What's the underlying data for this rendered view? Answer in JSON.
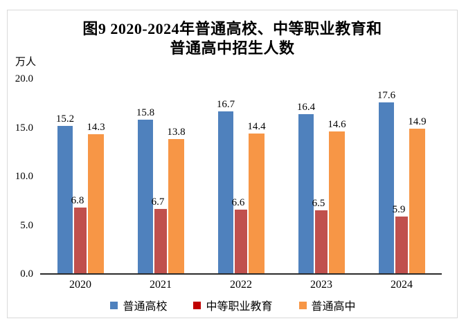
{
  "chart": {
    "title_line1": "图9  2020-2024年普通高校、中等职业教育和",
    "title_line2": "普通高中招生人数",
    "unit_label": "万人"
  },
  "chart_data": {
    "type": "bar",
    "title": "图9 2020-2024年普通高校、中等职业教育和普通高中招生人数",
    "ylabel": "万人",
    "categories": [
      "2020",
      "2021",
      "2022",
      "2023",
      "2024"
    ],
    "series": [
      {
        "name": "普通高校",
        "color": "#4F81BD",
        "legend_marker_color": "#4F81BD",
        "values": [
          15.2,
          15.8,
          16.7,
          16.4,
          17.6
        ]
      },
      {
        "name": "中等职业教育",
        "color": "#C0504D",
        "legend_marker_color": "#C00000",
        "values": [
          6.8,
          6.7,
          6.6,
          6.5,
          5.9
        ]
      },
      {
        "name": "普通高中",
        "color": "#F79646",
        "legend_marker_color": "#F79646",
        "values": [
          14.3,
          13.8,
          14.4,
          14.6,
          14.9
        ]
      }
    ],
    "ylim": [
      0,
      20
    ],
    "yticks": [
      0.0,
      5.0,
      10.0,
      15.0,
      20.0
    ],
    "ytick_labels": [
      "0.0",
      "5.0",
      "10.0",
      "15.0",
      "20.0"
    ],
    "grid": false,
    "data_labels": true,
    "legend_position": "bottom"
  }
}
